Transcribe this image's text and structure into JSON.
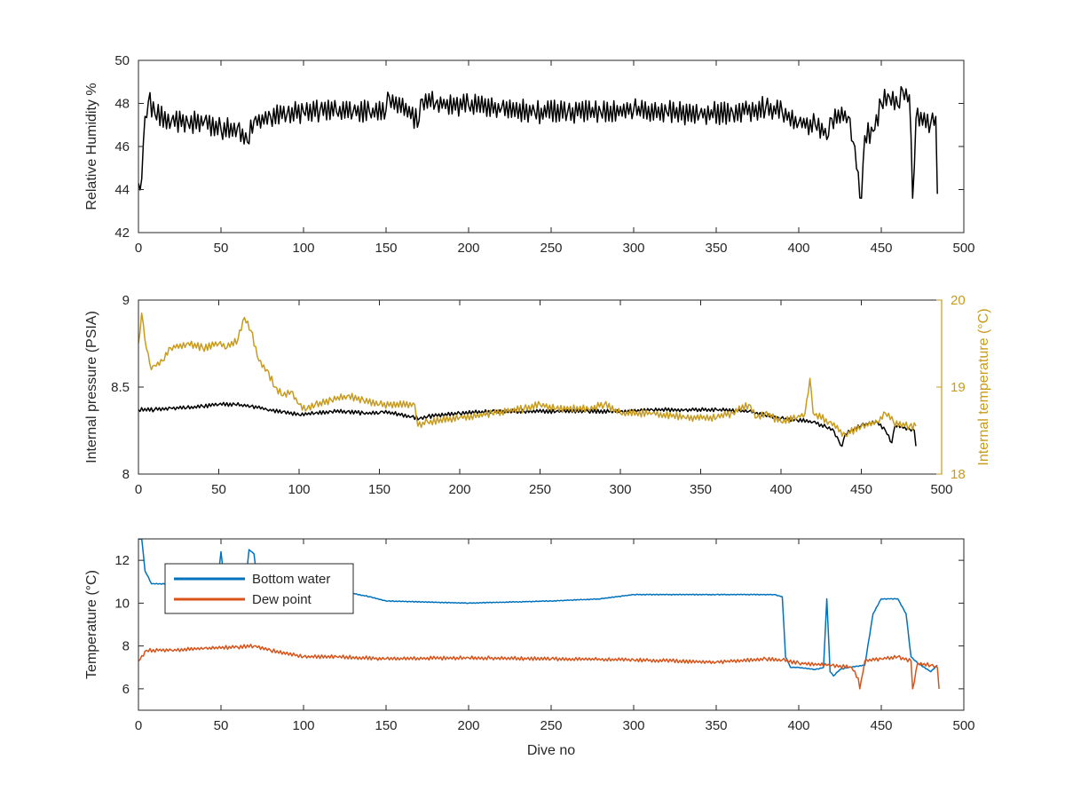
{
  "chart_data": [
    {
      "type": "line",
      "title": "",
      "xlabel": "",
      "ylabel": "Relative Humidity %",
      "xlim": [
        0,
        500
      ],
      "ylim": [
        42,
        50
      ],
      "xticks": [
        0,
        50,
        100,
        150,
        200,
        250,
        300,
        350,
        400,
        450,
        500
      ],
      "yticks": [
        42,
        44,
        46,
        48,
        50
      ],
      "grid": false,
      "series": [
        {
          "color": "#000000",
          "noise": 0.55,
          "points": [
            [
              0,
              44.3
            ],
            [
              2,
              44.5
            ],
            [
              4,
              47.4
            ],
            [
              6,
              48.1
            ],
            [
              10,
              47.5
            ],
            [
              20,
              47.2
            ],
            [
              30,
              47.1
            ],
            [
              40,
              47.2
            ],
            [
              50,
              46.8
            ],
            [
              60,
              46.9
            ],
            [
              66,
              46.2
            ],
            [
              70,
              47.2
            ],
            [
              80,
              47.4
            ],
            [
              90,
              47.5
            ],
            [
              100,
              47.6
            ],
            [
              110,
              47.7
            ],
            [
              120,
              47.6
            ],
            [
              130,
              47.6
            ],
            [
              140,
              47.6
            ],
            [
              150,
              47.7
            ],
            [
              152,
              48.3
            ],
            [
              170,
              47.2
            ],
            [
              172,
              48.2
            ],
            [
              180,
              48.0
            ],
            [
              200,
              47.9
            ],
            [
              220,
              47.8
            ],
            [
              240,
              47.6
            ],
            [
              260,
              47.6
            ],
            [
              280,
              47.6
            ],
            [
              300,
              47.7
            ],
            [
              320,
              47.6
            ],
            [
              340,
              47.5
            ],
            [
              360,
              47.6
            ],
            [
              380,
              47.8
            ],
            [
              390,
              47.6
            ],
            [
              400,
              47.1
            ],
            [
              410,
              47.0
            ],
            [
              418,
              46.5
            ],
            [
              420,
              47.3
            ],
            [
              430,
              47.4
            ],
            [
              433,
              46.2
            ],
            [
              438,
              43.6
            ],
            [
              440,
              46.5
            ],
            [
              445,
              46.7
            ],
            [
              450,
              48.0
            ],
            [
              455,
              48.3
            ],
            [
              460,
              47.9
            ],
            [
              463,
              48.6
            ],
            [
              467,
              48.4
            ],
            [
              469,
              43.6
            ],
            [
              471,
              47.3
            ],
            [
              480,
              47.1
            ],
            [
              483,
              47.4
            ],
            [
              484,
              43.8
            ]
          ]
        }
      ]
    },
    {
      "type": "line",
      "title": "",
      "xlabel": "",
      "ylabel": "Internal pressure (PSIA)",
      "ylabel_right": "Internal temperature (°C)",
      "xlim": [
        0,
        500
      ],
      "ylim": [
        8,
        9
      ],
      "ylim_right": [
        18,
        20
      ],
      "xticks": [
        0,
        50,
        100,
        150,
        200,
        250,
        300,
        350,
        400,
        450,
        500
      ],
      "yticks": [
        8,
        8.5,
        9
      ],
      "ytick_labels": [
        "8",
        "8.5",
        "9"
      ],
      "yticks_right": [
        18,
        19,
        20
      ],
      "grid": false,
      "series": [
        {
          "axis": "left",
          "color": "#000000",
          "noise": 0.012,
          "points": [
            [
              0,
              8.37
            ],
            [
              10,
              8.37
            ],
            [
              20,
              8.38
            ],
            [
              30,
              8.38
            ],
            [
              40,
              8.39
            ],
            [
              50,
              8.4
            ],
            [
              60,
              8.4
            ],
            [
              70,
              8.39
            ],
            [
              80,
              8.37
            ],
            [
              90,
              8.36
            ],
            [
              100,
              8.34
            ],
            [
              110,
              8.35
            ],
            [
              120,
              8.36
            ],
            [
              130,
              8.36
            ],
            [
              140,
              8.35
            ],
            [
              150,
              8.35
            ],
            [
              152,
              8.36
            ],
            [
              170,
              8.33
            ],
            [
              175,
              8.32
            ],
            [
              180,
              8.33
            ],
            [
              200,
              8.35
            ],
            [
              220,
              8.36
            ],
            [
              240,
              8.36
            ],
            [
              260,
              8.36
            ],
            [
              280,
              8.36
            ],
            [
              300,
              8.36
            ],
            [
              320,
              8.37
            ],
            [
              340,
              8.37
            ],
            [
              360,
              8.37
            ],
            [
              380,
              8.36
            ],
            [
              390,
              8.34
            ],
            [
              400,
              8.32
            ],
            [
              410,
              8.31
            ],
            [
              420,
              8.3
            ],
            [
              428,
              8.27
            ],
            [
              432,
              8.26
            ],
            [
              436,
              8.19
            ],
            [
              438,
              8.16
            ],
            [
              440,
              8.23
            ],
            [
              450,
              8.28
            ],
            [
              460,
              8.3
            ],
            [
              465,
              8.25
            ],
            [
              469,
              8.18
            ],
            [
              471,
              8.28
            ],
            [
              480,
              8.26
            ],
            [
              483,
              8.25
            ],
            [
              484,
              8.16
            ]
          ]
        },
        {
          "axis": "right",
          "color": "#C89B1C",
          "noise": 0.045,
          "points": [
            [
              0,
              19.5
            ],
            [
              2,
              19.85
            ],
            [
              4,
              19.55
            ],
            [
              8,
              19.2
            ],
            [
              10,
              19.25
            ],
            [
              15,
              19.3
            ],
            [
              20,
              19.45
            ],
            [
              30,
              19.5
            ],
            [
              40,
              19.45
            ],
            [
              50,
              19.5
            ],
            [
              55,
              19.45
            ],
            [
              62,
              19.55
            ],
            [
              66,
              19.8
            ],
            [
              70,
              19.65
            ],
            [
              75,
              19.3
            ],
            [
              80,
              19.2
            ],
            [
              85,
              19.0
            ],
            [
              90,
              18.9
            ],
            [
              95,
              18.95
            ],
            [
              100,
              18.8
            ],
            [
              105,
              18.75
            ],
            [
              110,
              18.8
            ],
            [
              120,
              18.85
            ],
            [
              130,
              18.9
            ],
            [
              140,
              18.85
            ],
            [
              150,
              18.8
            ],
            [
              172,
              18.8
            ],
            [
              174,
              18.55
            ],
            [
              180,
              18.6
            ],
            [
              200,
              18.65
            ],
            [
              220,
              18.7
            ],
            [
              240,
              18.75
            ],
            [
              250,
              18.8
            ],
            [
              260,
              18.75
            ],
            [
              280,
              18.75
            ],
            [
              290,
              18.8
            ],
            [
              300,
              18.7
            ],
            [
              320,
              18.7
            ],
            [
              340,
              18.65
            ],
            [
              360,
              18.65
            ],
            [
              370,
              18.7
            ],
            [
              380,
              18.8
            ],
            [
              385,
              18.65
            ],
            [
              390,
              18.7
            ],
            [
              400,
              18.6
            ],
            [
              410,
              18.65
            ],
            [
              415,
              18.7
            ],
            [
              418,
              19.1
            ],
            [
              420,
              18.7
            ],
            [
              430,
              18.6
            ],
            [
              440,
              18.45
            ],
            [
              450,
              18.55
            ],
            [
              460,
              18.6
            ],
            [
              465,
              18.7
            ],
            [
              470,
              18.6
            ],
            [
              480,
              18.55
            ],
            [
              484,
              18.55
            ]
          ]
        }
      ]
    },
    {
      "type": "line",
      "title": "",
      "xlabel": "Dive no",
      "ylabel": "Temperature (°C)",
      "xlim": [
        0,
        500
      ],
      "ylim": [
        5,
        13
      ],
      "xticks": [
        0,
        50,
        100,
        150,
        200,
        250,
        300,
        350,
        400,
        450,
        500
      ],
      "yticks": [
        6,
        8,
        10,
        12
      ],
      "grid": false,
      "legend": "top-left",
      "series": [
        {
          "name": "Bottom water",
          "color": "#0072BD",
          "noise": 0.02,
          "points": [
            [
              0,
              13.0
            ],
            [
              2,
              13.0
            ],
            [
              4,
              11.5
            ],
            [
              8,
              10.9
            ],
            [
              20,
              10.9
            ],
            [
              48,
              10.95
            ],
            [
              50,
              12.4
            ],
            [
              52,
              11.0
            ],
            [
              65,
              11.0
            ],
            [
              67,
              12.5
            ],
            [
              70,
              12.3
            ],
            [
              72,
              11.0
            ],
            [
              80,
              11.0
            ],
            [
              100,
              10.9
            ],
            [
              120,
              10.6
            ],
            [
              140,
              10.3
            ],
            [
              150,
              10.1
            ],
            [
              200,
              10.0
            ],
            [
              250,
              10.1
            ],
            [
              280,
              10.2
            ],
            [
              300,
              10.4
            ],
            [
              350,
              10.4
            ],
            [
              385,
              10.4
            ],
            [
              390,
              10.3
            ],
            [
              392,
              7.5
            ],
            [
              395,
              7.0
            ],
            [
              400,
              7.0
            ],
            [
              410,
              6.9
            ],
            [
              415,
              7.0
            ],
            [
              417,
              10.2
            ],
            [
              419,
              6.8
            ],
            [
              421,
              6.6
            ],
            [
              425,
              6.9
            ],
            [
              430,
              7.0
            ],
            [
              440,
              7.1
            ],
            [
              445,
              9.5
            ],
            [
              450,
              10.2
            ],
            [
              460,
              10.2
            ],
            [
              465,
              9.5
            ],
            [
              468,
              7.5
            ],
            [
              472,
              7.2
            ],
            [
              480,
              6.8
            ],
            [
              484,
              7.1
            ]
          ]
        },
        {
          "name": "Dew point",
          "color": "#D95319",
          "noise": 0.09,
          "points": [
            [
              0,
              7.3
            ],
            [
              5,
              7.8
            ],
            [
              20,
              7.8
            ],
            [
              40,
              7.9
            ],
            [
              60,
              7.95
            ],
            [
              70,
              8.0
            ],
            [
              80,
              7.8
            ],
            [
              100,
              7.5
            ],
            [
              120,
              7.5
            ],
            [
              150,
              7.4
            ],
            [
              200,
              7.45
            ],
            [
              250,
              7.4
            ],
            [
              300,
              7.35
            ],
            [
              350,
              7.25
            ],
            [
              380,
              7.4
            ],
            [
              390,
              7.35
            ],
            [
              400,
              7.2
            ],
            [
              420,
              7.1
            ],
            [
              432,
              7.0
            ],
            [
              436,
              6.5
            ],
            [
              437,
              6.0
            ],
            [
              440,
              7.3
            ],
            [
              450,
              7.4
            ],
            [
              460,
              7.5
            ],
            [
              468,
              7.3
            ],
            [
              469,
              6.0
            ],
            [
              472,
              7.2
            ],
            [
              480,
              7.1
            ],
            [
              484,
              7.0
            ],
            [
              485,
              6.0
            ]
          ]
        }
      ]
    }
  ]
}
